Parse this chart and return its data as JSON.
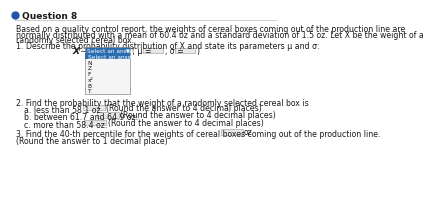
{
  "title": "Question 8",
  "bg_color": "#ffffff",
  "bullet_color": "#2255aa",
  "header_line_color": "#cccccc",
  "body_text": [
    "Based on a quality control report, the weights of cereal boxes coming out of the production line are",
    "normally distributed with a mean of 60.4 oz and a standard deviation of 1.5 oz. Let X be the weight of a",
    "randomly selected cereal box."
  ],
  "q1_text": "1. Describe the probability distribution of X and state its parameters μ and σ:",
  "dropdown_label": "Select an answer",
  "dropdown_arrow": "▾",
  "dropdown_items": [
    "Select an answer",
    "N",
    "Z",
    "F",
    "x²",
    "B",
    "T"
  ],
  "mu_label": "( μ =",
  "sigma_label": ", σ =",
  "close_paren": ")",
  "q2_text": "2. Find the probability that the weight of a randomly selected cereal box is",
  "q2a_text": "a. less than 58.1 oz.",
  "q2a_suffix": "(Round the answer to 4 decimal places)",
  "q2b_text": "b. between 61.7 and 64.9 oz.",
  "q2b_suffix": "(Round the answer to 4 decimal places)",
  "q2c_text": "c. more than 58.4 oz.",
  "q2c_suffix": "(Round the answer to 4 decimal places)",
  "q3_text": "3. Find the 40-th percentile for the weights of cereal boxes coming out of the production line.",
  "q3_oz": "oz",
  "q3_round": "(Round the answer to 1 decimal place)",
  "fs": 5.6,
  "fs_title": 6.5,
  "text_color": "#1a1a1a",
  "dropdown_header_bg": "#2b6cb0",
  "dropdown_header_fg": "#ffffff",
  "dropdown_item_highlight_bg": "#2b6cb0",
  "dropdown_item_highlight_fg": "#ffffff",
  "dropdown_item_bg": "#f5f5f5",
  "dropdown_item_fg": "#111111",
  "dropdown_border": "#888888",
  "input_bg": "#e8e8e8",
  "input_border": "#aaaaaa"
}
